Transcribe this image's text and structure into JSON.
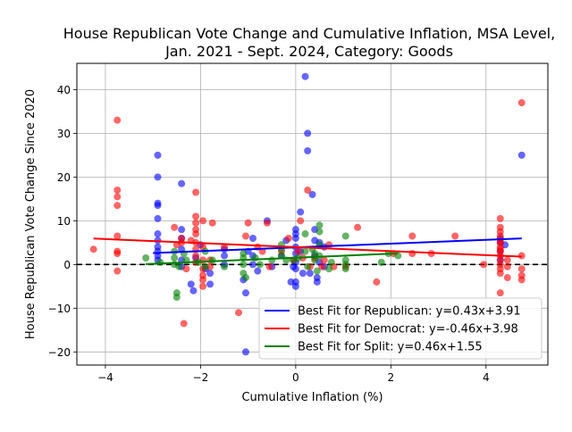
{
  "chart_data": {
    "type": "scatter",
    "title_lines": [
      "House Republican Vote Change and Cumulative Inflation, MSA Level,",
      "Jan. 2021 - Sept. 2024, Category: Goods"
    ],
    "xlabel": "Cumulative Inflation (%)",
    "ylabel": "House Republican Vote Change Since 2020",
    "xlim": [
      -4.6,
      5.3
    ],
    "ylim": [
      -23.0,
      46.0
    ],
    "xticks": [
      -4,
      -2,
      0,
      2,
      4
    ],
    "yticks": [
      -20,
      -10,
      0,
      10,
      20,
      30,
      40
    ],
    "grid": true,
    "zero_line": true,
    "legend_placement": "lower-right",
    "series": [
      {
        "key": "republican",
        "color": "#0000ff",
        "points": [
          [
            -2.9,
            25
          ],
          [
            -2.9,
            20
          ],
          [
            -2.9,
            14
          ],
          [
            -2.9,
            13.5
          ],
          [
            -2.9,
            10.5
          ],
          [
            -2.9,
            7
          ],
          [
            -2.9,
            5.5
          ],
          [
            -2.9,
            4
          ],
          [
            -2.9,
            3
          ],
          [
            -2.9,
            2
          ],
          [
            -2.9,
            1
          ],
          [
            -2.4,
            18.5
          ],
          [
            -2.4,
            8
          ],
          [
            -2.4,
            6
          ],
          [
            -2.4,
            3.5
          ],
          [
            -2.4,
            1
          ],
          [
            -2.4,
            -0.5
          ],
          [
            -2.2,
            -4.5
          ],
          [
            -2.15,
            -6
          ],
          [
            -2.1,
            1.5
          ],
          [
            -2,
            4.5
          ],
          [
            -1.9,
            -1
          ],
          [
            -1.8,
            -4.5
          ],
          [
            -1.8,
            -2
          ],
          [
            -1.5,
            3.5
          ],
          [
            -1.5,
            2
          ],
          [
            -1.5,
            0
          ],
          [
            -1.1,
            -3.5
          ],
          [
            -1.05,
            -6.5
          ],
          [
            -1.05,
            -20
          ],
          [
            -1,
            3
          ],
          [
            -0.9,
            6
          ],
          [
            -0.9,
            2
          ],
          [
            -0.9,
            0
          ],
          [
            -0.8,
            -1.5
          ],
          [
            -0.6,
            10
          ],
          [
            -0.5,
            -0.5
          ],
          [
            -0.3,
            2
          ],
          [
            -0.2,
            5.5
          ],
          [
            -0.1,
            -4
          ],
          [
            -0.05,
            -0.5
          ],
          [
            0,
            8
          ],
          [
            0,
            7
          ],
          [
            0,
            6
          ],
          [
            0,
            4
          ],
          [
            0,
            2.5
          ],
          [
            0,
            0.5
          ],
          [
            0,
            -1
          ],
          [
            0,
            -4
          ],
          [
            0,
            -5
          ],
          [
            0.1,
            12
          ],
          [
            0.1,
            3
          ],
          [
            0.15,
            -2
          ],
          [
            0.2,
            43
          ],
          [
            0.25,
            30
          ],
          [
            0.25,
            26
          ],
          [
            0.3,
            -2
          ],
          [
            0.35,
            16
          ],
          [
            0.4,
            8
          ],
          [
            0.4,
            5.5
          ],
          [
            0.4,
            2
          ],
          [
            0.45,
            -3
          ],
          [
            0.45,
            -4
          ],
          [
            0.5,
            5
          ],
          [
            0.5,
            0.5
          ],
          [
            0.6,
            4
          ],
          [
            0.6,
            -0.5
          ],
          [
            4.3,
            6
          ],
          [
            4.3,
            5
          ],
          [
            4.3,
            3
          ],
          [
            4.3,
            1
          ],
          [
            4.4,
            4.5
          ],
          [
            4.75,
            25
          ]
        ]
      },
      {
        "key": "democrat",
        "color": "#ff0000",
        "points": [
          [
            -4.25,
            3.5
          ],
          [
            -3.75,
            33
          ],
          [
            -3.75,
            17
          ],
          [
            -3.75,
            15.5
          ],
          [
            -3.75,
            13.5
          ],
          [
            -3.75,
            6.5
          ],
          [
            -3.75,
            3
          ],
          [
            -3.75,
            2.5
          ],
          [
            -3.75,
            -1.5
          ],
          [
            -2.55,
            8.5
          ],
          [
            -2.5,
            4.5
          ],
          [
            -2.4,
            6
          ],
          [
            -2.4,
            5
          ],
          [
            -2.35,
            -13.5
          ],
          [
            -2.3,
            -1
          ],
          [
            -2.2,
            5.5
          ],
          [
            -2.1,
            16.5
          ],
          [
            -2.1,
            11
          ],
          [
            -2.1,
            9.5
          ],
          [
            -2.1,
            8
          ],
          [
            -2.1,
            7
          ],
          [
            -2.1,
            5
          ],
          [
            -2.1,
            3.5
          ],
          [
            -2.1,
            2
          ],
          [
            -2.1,
            0.5
          ],
          [
            -1.95,
            10
          ],
          [
            -1.95,
            4
          ],
          [
            -1.95,
            1
          ],
          [
            -1.95,
            -1
          ],
          [
            -1.95,
            -2.5
          ],
          [
            -1.95,
            -3.5
          ],
          [
            -1.95,
            -5
          ],
          [
            -1.8,
            1
          ],
          [
            -1.8,
            -0.5
          ],
          [
            -1.75,
            9.5
          ],
          [
            -1.5,
            4
          ],
          [
            -1.2,
            -11
          ],
          [
            -1.05,
            6.5
          ],
          [
            -1,
            9.5
          ],
          [
            -0.8,
            4
          ],
          [
            -0.7,
            3
          ],
          [
            -0.6,
            9.5
          ],
          [
            -0.55,
            -0.5
          ],
          [
            -0.3,
            3
          ],
          [
            -0.15,
            6
          ],
          [
            -0.05,
            1
          ],
          [
            0.05,
            3
          ],
          [
            0.1,
            10
          ],
          [
            0.15,
            1.5
          ],
          [
            0.25,
            17
          ],
          [
            0.3,
            -0.5
          ],
          [
            0.4,
            1.5
          ],
          [
            0.55,
            -0.5
          ],
          [
            0.6,
            1
          ],
          [
            0.7,
            4.5
          ],
          [
            0.8,
            -0.5
          ],
          [
            1.05,
            -0.5
          ],
          [
            1.3,
            8.5
          ],
          [
            1.7,
            -4
          ],
          [
            2.05,
            2.5
          ],
          [
            2.45,
            6.5
          ],
          [
            2.45,
            2.5
          ],
          [
            2.85,
            2.5
          ],
          [
            3.35,
            6.5
          ],
          [
            3.95,
            0
          ],
          [
            4.3,
            10.5
          ],
          [
            4.3,
            8.5
          ],
          [
            4.3,
            7.5
          ],
          [
            4.3,
            6.5
          ],
          [
            4.3,
            5.5
          ],
          [
            4.3,
            5
          ],
          [
            4.3,
            4
          ],
          [
            4.3,
            3.5
          ],
          [
            4.3,
            3
          ],
          [
            4.3,
            2
          ],
          [
            4.3,
            1
          ],
          [
            4.3,
            0
          ],
          [
            4.3,
            -1
          ],
          [
            4.3,
            -2
          ],
          [
            4.3,
            -6.5
          ],
          [
            4.45,
            1
          ],
          [
            4.45,
            -0.5
          ],
          [
            4.45,
            -3
          ],
          [
            4.75,
            37
          ],
          [
            4.75,
            2
          ],
          [
            4.75,
            -1
          ],
          [
            4.75,
            -2.5
          ],
          [
            4.75,
            -3.5
          ]
        ]
      },
      {
        "key": "split",
        "color": "#008000",
        "points": [
          [
            -3.15,
            1.5
          ],
          [
            -2.85,
            0.5
          ],
          [
            -2.55,
            3
          ],
          [
            -2.55,
            1.5
          ],
          [
            -2.55,
            0
          ],
          [
            -2.5,
            -6.5
          ],
          [
            -2.5,
            -7.5
          ],
          [
            -2.45,
            -0.5
          ],
          [
            -2.35,
            2.5
          ],
          [
            -2.3,
            1
          ],
          [
            -2.05,
            0.5
          ],
          [
            -1.9,
            3
          ],
          [
            -1.9,
            -0.5
          ],
          [
            -1.75,
            1
          ],
          [
            -1.5,
            -0.5
          ],
          [
            -1.1,
            2.5
          ],
          [
            -1.1,
            1.5
          ],
          [
            -1.1,
            0
          ],
          [
            -1.1,
            -2
          ],
          [
            -1.05,
            -3
          ],
          [
            -0.85,
            1.5
          ],
          [
            -0.75,
            0
          ],
          [
            -0.5,
            1
          ],
          [
            -0.3,
            4.5
          ],
          [
            -0.3,
            3.5
          ],
          [
            -0.3,
            2
          ],
          [
            -0.2,
            1
          ],
          [
            -0.05,
            1
          ],
          [
            0.05,
            1.5
          ],
          [
            0.2,
            7
          ],
          [
            0.2,
            3
          ],
          [
            0.25,
            -0.5
          ],
          [
            0.35,
            3.5
          ],
          [
            0.4,
            2.5
          ],
          [
            0.4,
            1
          ],
          [
            0.45,
            -1.5
          ],
          [
            0.5,
            9
          ],
          [
            0.5,
            7.5
          ],
          [
            0.5,
            4.5
          ],
          [
            0.5,
            2
          ],
          [
            0.7,
            -1
          ],
          [
            0.75,
            0.5
          ],
          [
            1.05,
            6.5
          ],
          [
            1.05,
            1
          ],
          [
            1.05,
            0
          ],
          [
            1.05,
            -1
          ],
          [
            1.8,
            0.5
          ],
          [
            1.95,
            2.5
          ],
          [
            2.15,
            2
          ]
        ]
      }
    ],
    "fits": [
      {
        "key": "republican",
        "color": "#0000ff",
        "slope": 0.43,
        "intercept": 3.91,
        "label": "Best Fit for Republican: y=0.43x+3.91",
        "x_range": [
          -3.0,
          4.75
        ]
      },
      {
        "key": "democrat",
        "color": "#ff0000",
        "slope": -0.46,
        "intercept": 3.98,
        "label": "Best Fit for Democrat: y=-0.46x+3.98",
        "x_range": [
          -4.25,
          4.75
        ]
      },
      {
        "key": "split",
        "color": "#008000",
        "slope": 0.46,
        "intercept": 1.55,
        "label": "Best Fit for Split: y=0.46x+1.55",
        "x_range": [
          -3.15,
          2.15
        ]
      }
    ]
  }
}
